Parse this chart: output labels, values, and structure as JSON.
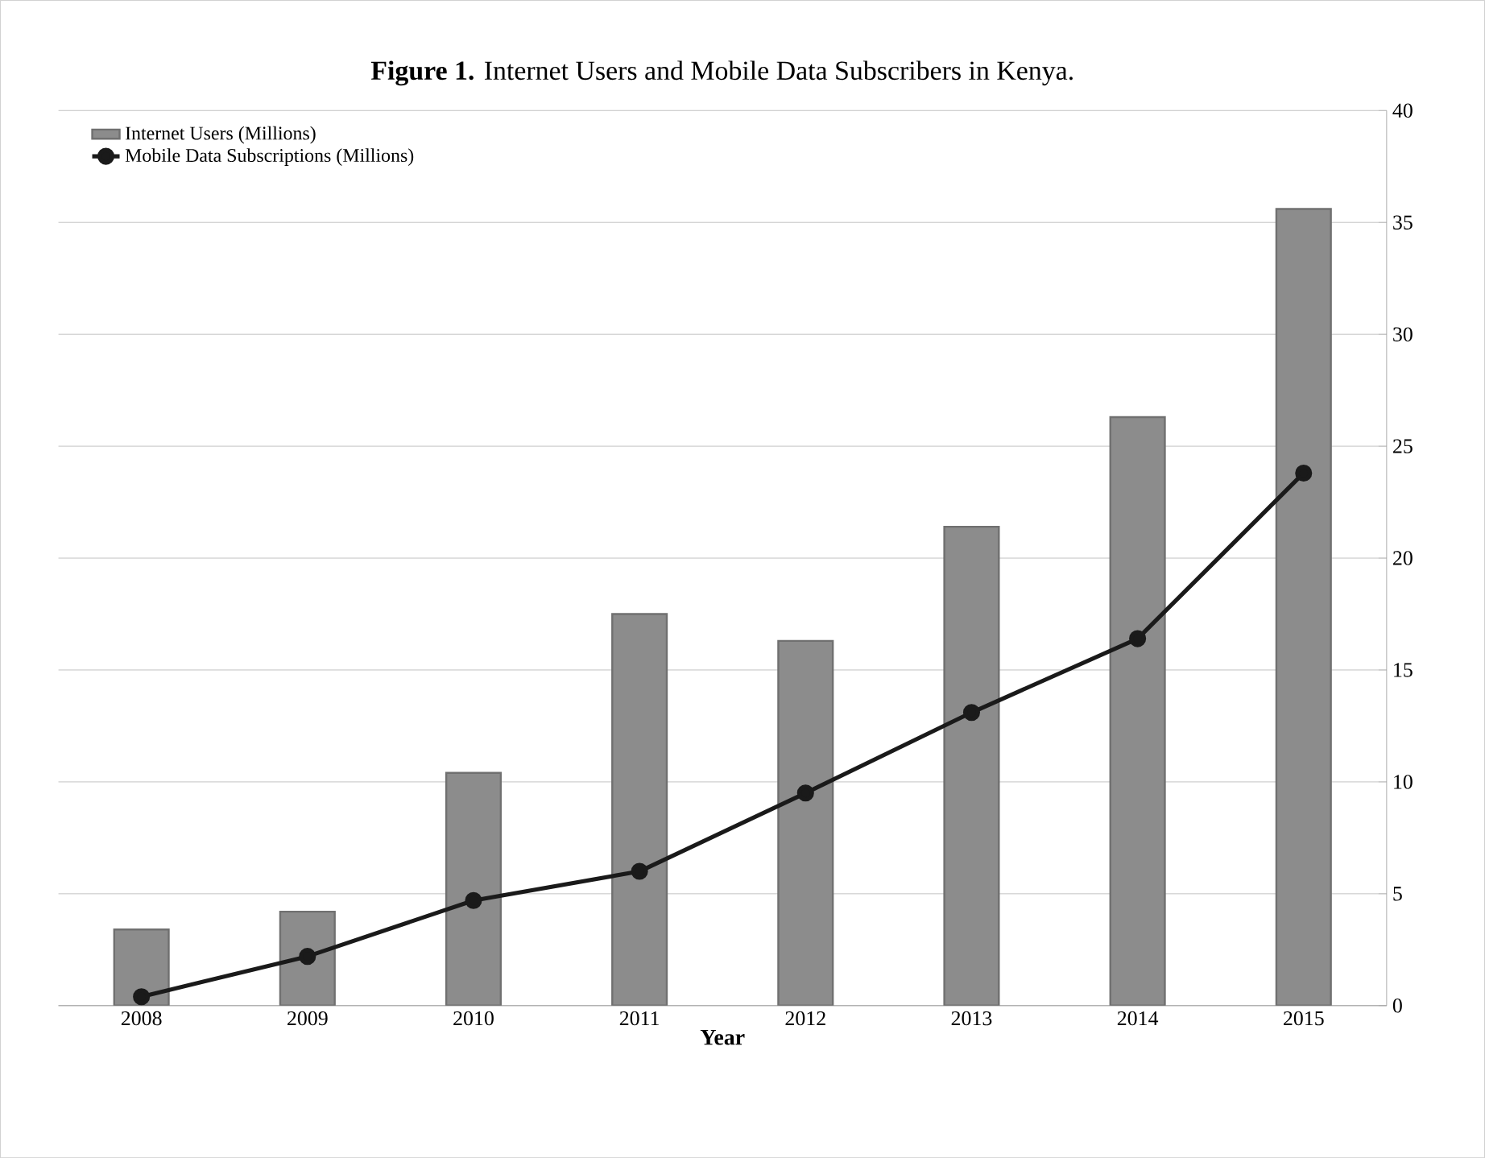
{
  "chart_data": {
    "type": "bar",
    "title": "**Figure 1.** Internet Users and Mobile Data Subscribers in Kenya.",
    "xlabel": "Year",
    "categories": [
      "2008",
      "2009",
      "2010",
      "2011",
      "2012",
      "2013",
      "2014",
      "2015"
    ],
    "series": [
      {
        "name": "Internet Users (Millions)",
        "color": "#8c8c8c",
        "values": [
          3.4,
          4.2,
          10.4,
          17.5,
          16.3,
          21.4,
          26.3,
          35.6
        ]
      },
      {
        "name": "Mobile Data Subscriptions (Millions)",
        "type": "line",
        "color": "#1a1a1a",
        "marker": "circle",
        "values": [
          0.4,
          2.2,
          4.7,
          6.0,
          9.5,
          13.1,
          16.4,
          23.8
        ]
      }
    ],
    "ylim": [
      0,
      40
    ],
    "yticks": [
      0,
      5,
      10,
      15,
      20,
      25,
      30,
      35,
      40
    ],
    "grid": "y",
    "legend": "top left"
  }
}
